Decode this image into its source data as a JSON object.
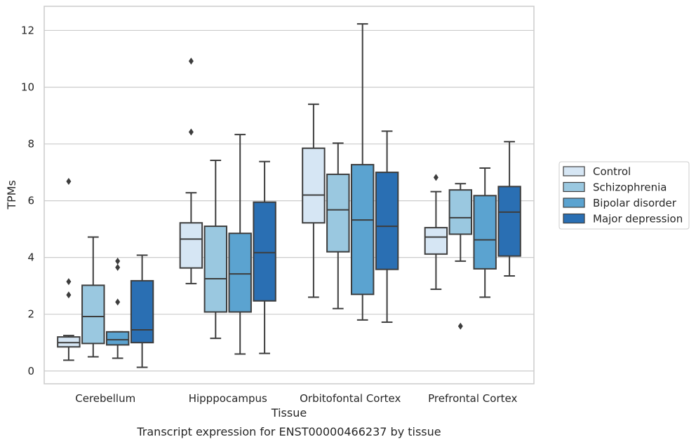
{
  "chart_data": {
    "type": "box",
    "xlabel": "Tissue",
    "ylabel": "TPMs",
    "caption": "Transcript expression for ENST00000466237 by tissue",
    "ylim": [
      -0.45,
      12.85
    ],
    "yticks": [
      0,
      2,
      4,
      6,
      8,
      10,
      12
    ],
    "grid": true,
    "legend_position": "right",
    "categories": [
      "Cerebellum",
      "Hipppocampus",
      "Orbitofontal Cortex",
      "Prefrontal Cortex"
    ],
    "series": [
      {
        "name": "Control",
        "color": "#d6e6f4",
        "boxes": [
          {
            "whislo": 0.38,
            "q1": 0.85,
            "med": 1.0,
            "q3": 1.2,
            "whishi": 1.25,
            "fliers": [
              2.68,
              3.15,
              6.68
            ]
          },
          {
            "whislo": 3.08,
            "q1": 3.63,
            "med": 4.65,
            "q3": 5.22,
            "whishi": 6.28,
            "fliers": [
              8.42,
              10.92
            ]
          },
          {
            "whislo": 2.6,
            "q1": 5.22,
            "med": 6.2,
            "q3": 7.85,
            "whishi": 9.4,
            "fliers": []
          },
          {
            "whislo": 2.88,
            "q1": 4.12,
            "med": 4.72,
            "q3": 5.05,
            "whishi": 6.32,
            "fliers": [
              6.82
            ]
          }
        ]
      },
      {
        "name": "Schizophrenia",
        "color": "#9ac8e0",
        "boxes": [
          {
            "whislo": 0.5,
            "q1": 0.97,
            "med": 1.92,
            "q3": 3.02,
            "whishi": 4.72,
            "fliers": []
          },
          {
            "whislo": 1.15,
            "q1": 2.08,
            "med": 3.25,
            "q3": 5.1,
            "whishi": 7.42,
            "fliers": []
          },
          {
            "whislo": 2.2,
            "q1": 4.2,
            "med": 5.68,
            "q3": 6.93,
            "whishi": 8.03,
            "fliers": []
          },
          {
            "whislo": 3.87,
            "q1": 4.82,
            "med": 5.4,
            "q3": 6.38,
            "whishi": 6.6,
            "fliers": [
              1.58
            ]
          }
        ]
      },
      {
        "name": "Bipolar disorder",
        "color": "#5ba3d0",
        "boxes": [
          {
            "whislo": 0.45,
            "q1": 0.92,
            "med": 1.1,
            "q3": 1.38,
            "whishi": 1.38,
            "fliers": [
              2.43,
              3.65,
              3.87
            ]
          },
          {
            "whislo": 0.6,
            "q1": 2.08,
            "med": 3.42,
            "q3": 4.85,
            "whishi": 8.33,
            "fliers": []
          },
          {
            "whislo": 1.8,
            "q1": 2.7,
            "med": 5.32,
            "q3": 7.27,
            "whishi": 12.23,
            "fliers": []
          },
          {
            "whislo": 2.6,
            "q1": 3.6,
            "med": 4.62,
            "q3": 6.18,
            "whishi": 7.15,
            "fliers": []
          }
        ]
      },
      {
        "name": "Major depression",
        "color": "#2a6fb3",
        "boxes": [
          {
            "whislo": 0.13,
            "q1": 1.0,
            "med": 1.45,
            "q3": 3.18,
            "whishi": 4.08,
            "fliers": []
          },
          {
            "whislo": 0.62,
            "q1": 2.47,
            "med": 4.17,
            "q3": 5.95,
            "whishi": 7.38,
            "fliers": []
          },
          {
            "whislo": 1.72,
            "q1": 3.58,
            "med": 5.1,
            "q3": 7.0,
            "whishi": 8.45,
            "fliers": []
          },
          {
            "whislo": 3.35,
            "q1": 4.05,
            "med": 5.6,
            "q3": 6.5,
            "whishi": 8.08,
            "fliers": []
          }
        ]
      }
    ]
  }
}
